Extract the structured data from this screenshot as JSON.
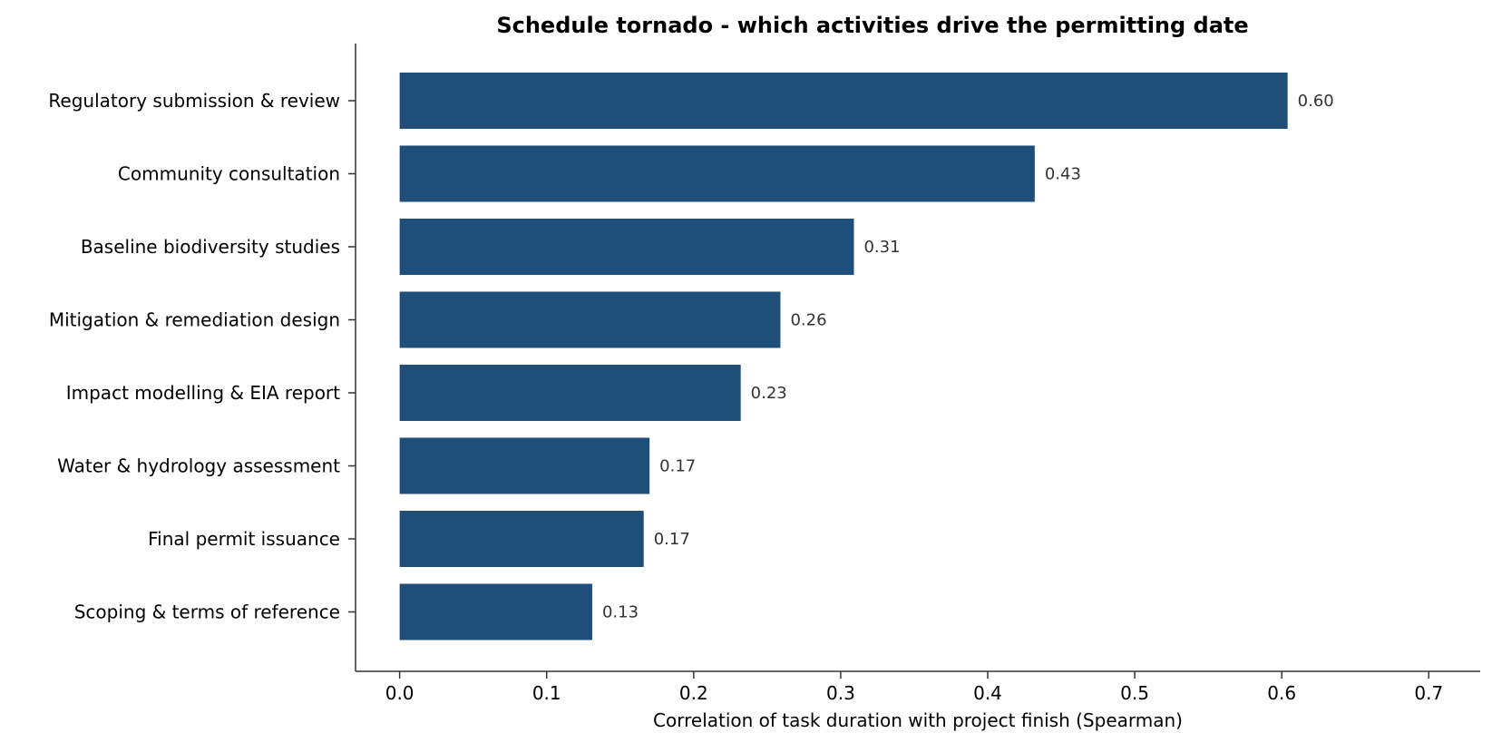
{
  "chart_data": {
    "type": "bar",
    "orientation": "horizontal",
    "title": "Schedule tornado - which activities drive the permitting date",
    "xlabel": "Correlation of task duration with project finish (Spearman)",
    "ylabel": "",
    "categories": [
      "Regulatory submission & review",
      "Community consultation",
      "Baseline biodiversity studies",
      "Mitigation & remediation design",
      "Impact modelling & EIA report",
      "Water & hydrology assessment",
      "Final permit issuance",
      "Scoping & terms of reference"
    ],
    "values": [
      0.604,
      0.432,
      0.309,
      0.259,
      0.232,
      0.17,
      0.166,
      0.131
    ],
    "value_labels": [
      "0.60",
      "0.43",
      "0.31",
      "0.26",
      "0.23",
      "0.17",
      "0.17",
      "0.13"
    ],
    "xlim": [
      -0.03,
      0.735
    ],
    "xticks": [
      0.0,
      0.1,
      0.2,
      0.3,
      0.4,
      0.5,
      0.6,
      0.7
    ],
    "xtick_labels": [
      "0.0",
      "0.1",
      "0.2",
      "0.3",
      "0.4",
      "0.5",
      "0.6",
      "0.7"
    ],
    "bar_color": "#1f4e79",
    "grid": false,
    "legend": "none"
  }
}
